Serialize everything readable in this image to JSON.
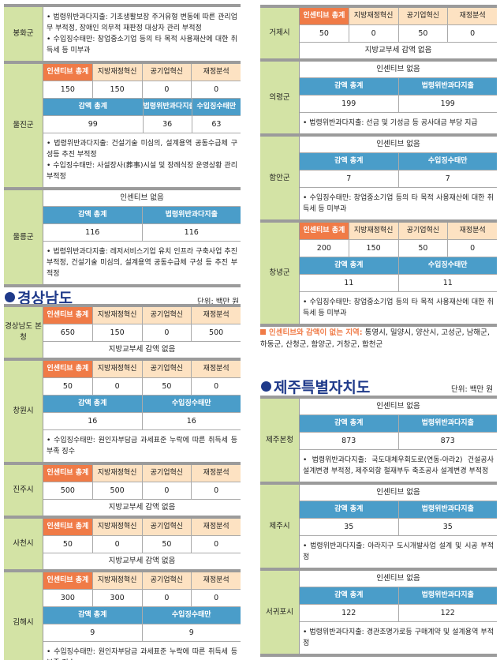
{
  "labels": {
    "inc_total": "인센티브 총계",
    "local_fin": "지방재정혁신",
    "public_ent": "공기업혁신",
    "fin_analysis": "재정분석",
    "cut_total": "감액 총계",
    "illegal": "법령위반과다지출",
    "revenue": "수입징수태만",
    "no_incentive": "인센티브 없음",
    "no_cut": "지방교부세 감액 없음"
  },
  "gyeongnam": {
    "title": "경상남도",
    "unit": "단위: 백만 원"
  },
  "jeju": {
    "title": "제주특별자치도",
    "unit": "단위: 백만 원"
  },
  "no_region_note": {
    "label": "인센티브와 감액이 없는 지역:",
    "text": " 통영시, 밀양시, 양산시, 고성군, 남해군, 하동군, 산청군, 함양군, 거창군, 합천군"
  },
  "colors": {
    "incentive_total": "#f07b47",
    "incentive_head": "#fde2c2",
    "cut_head": "#4a9dc9",
    "region_label": "#d3e3a5",
    "heading": "#1f3a8a"
  },
  "groups": [
    {
      "blocks": [
        {
          "name": "봉화군",
          "rows": [
            {
              "type": "note",
              "lines": [
                "• 법령위반과다지출: 기초생활보장 주거유형 변동에 따른 관리업무 부적정, 장애인 의무적 재판정 대상자 관리 부적정",
                "• 수입징수태만: 창업중소기업 등의 타 목적 사용재산에 대한 취득세 등 미부과"
              ]
            }
          ]
        },
        {
          "name": "울진군",
          "rows": [
            {
              "type": "inc",
              "values": [
                "150",
                "150",
                "0",
                "0"
              ]
            },
            {
              "type": "cut3",
              "values": [
                "99",
                "36",
                "63"
              ]
            },
            {
              "type": "note",
              "lines": [
                "• 법령위반과다지출: 건설기술 미심의, 설계용역 공동수급체 구성등 추진 부적정",
                "• 수입징수태만: 사설장사(葬事)시설 및 장례식장 운영상황 관리 부적정"
              ]
            }
          ]
        },
        {
          "name": "울릉군",
          "rows": [
            {
              "type": "noinc"
            },
            {
              "type": "cut2",
              "kind": "illegal",
              "values": [
                "116",
                "116"
              ]
            },
            {
              "type": "note",
              "lines": [
                "• 법령위반과다지출: 레저서비스기업 유치 인프라 구축사업 추진 부적정, 건설기술 미심의, 설계용역 공동수급체 구성 등 추진 부적정"
              ]
            }
          ]
        }
      ]
    },
    {
      "blocks": [
        {
          "name": "경상남도 본청",
          "rows": [
            {
              "type": "inc",
              "values": [
                "650",
                "150",
                "0",
                "500"
              ]
            },
            {
              "type": "nocut"
            }
          ]
        },
        {
          "name": "창원시",
          "rows": [
            {
              "type": "inc",
              "values": [
                "50",
                "0",
                "50",
                "0"
              ]
            },
            {
              "type": "cut2",
              "kind": "revenue",
              "values": [
                "16",
                "16"
              ]
            },
            {
              "type": "note",
              "lines": [
                "• 수입징수태만: 원인자부담금 과세표준 누락에 따른 취득세 등 부족 징수"
              ]
            }
          ]
        },
        {
          "name": "진주시",
          "rows": [
            {
              "type": "inc",
              "values": [
                "500",
                "500",
                "0",
                "0"
              ]
            },
            {
              "type": "nocut"
            }
          ]
        },
        {
          "name": "사천시",
          "rows": [
            {
              "type": "inc",
              "values": [
                "50",
                "0",
                "50",
                "0"
              ]
            },
            {
              "type": "nocut"
            }
          ]
        },
        {
          "name": "김해시",
          "rows": [
            {
              "type": "inc",
              "values": [
                "300",
                "300",
                "0",
                "0"
              ]
            },
            {
              "type": "cut2",
              "kind": "revenue",
              "values": [
                "9",
                "9"
              ]
            },
            {
              "type": "note",
              "lines": [
                "• 수입징수태만: 원인자부담금 과세표준 누락에 따른 취득세 등 부족 징수"
              ]
            }
          ]
        }
      ]
    },
    {
      "blocks": [
        {
          "name": "거제시",
          "rows": [
            {
              "type": "inc",
              "values": [
                "50",
                "0",
                "50",
                "0"
              ]
            },
            {
              "type": "nocut"
            }
          ]
        },
        {
          "name": "의령군",
          "rows": [
            {
              "type": "noinc"
            },
            {
              "type": "cut2",
              "kind": "illegal",
              "values": [
                "199",
                "199"
              ]
            },
            {
              "type": "note",
              "lines": [
                "• 법령위반과다지출: 선금 및 기성금 등 공사대금 부당 지급"
              ]
            }
          ]
        },
        {
          "name": "함안군",
          "rows": [
            {
              "type": "noinc"
            },
            {
              "type": "cut2",
              "kind": "revenue",
              "values": [
                "7",
                "7"
              ]
            },
            {
              "type": "note",
              "lines": [
                "• 수입징수태만: 창업중소기업 등의 타 목적 사용재산에 대한 취득세 등 미부과"
              ]
            }
          ]
        },
        {
          "name": "창녕군",
          "rows": [
            {
              "type": "inc",
              "values": [
                "200",
                "150",
                "50",
                "0"
              ]
            },
            {
              "type": "cut2",
              "kind": "revenue",
              "values": [
                "11",
                "11"
              ]
            },
            {
              "type": "note",
              "lines": [
                "• 수입징수태만: 창업중소기업 등의 타 목적 사용재산에 대한 취득세 등 미부과"
              ]
            }
          ]
        }
      ]
    },
    {
      "blocks": [
        {
          "name": "제주본청",
          "rows": [
            {
              "type": "noinc"
            },
            {
              "type": "cut2",
              "kind": "illegal",
              "values": [
                "873",
                "873"
              ]
            },
            {
              "type": "note",
              "lines": [
                "• 법령위반과다지출: 국도대체우회도로(연동-아라2) 건설공사 설계변경 부적정, 제주외항 철재부두 축조공사 설계변경 부적정"
              ]
            }
          ]
        },
        {
          "name": "제주시",
          "rows": [
            {
              "type": "noinc"
            },
            {
              "type": "cut2",
              "kind": "illegal",
              "values": [
                "35",
                "35"
              ]
            },
            {
              "type": "note",
              "lines": [
                "• 법령위반과다지출: 아라지구 도시개발사업 설계 및 시공 부적정"
              ]
            }
          ]
        },
        {
          "name": "서귀포시",
          "rows": [
            {
              "type": "noinc"
            },
            {
              "type": "cut2",
              "kind": "illegal",
              "values": [
                "122",
                "122"
              ]
            },
            {
              "type": "note",
              "lines": [
                "• 법령위반과다지출: 경관조명가로등 구매계약 및 설계용역 부적정"
              ]
            }
          ]
        }
      ]
    }
  ]
}
